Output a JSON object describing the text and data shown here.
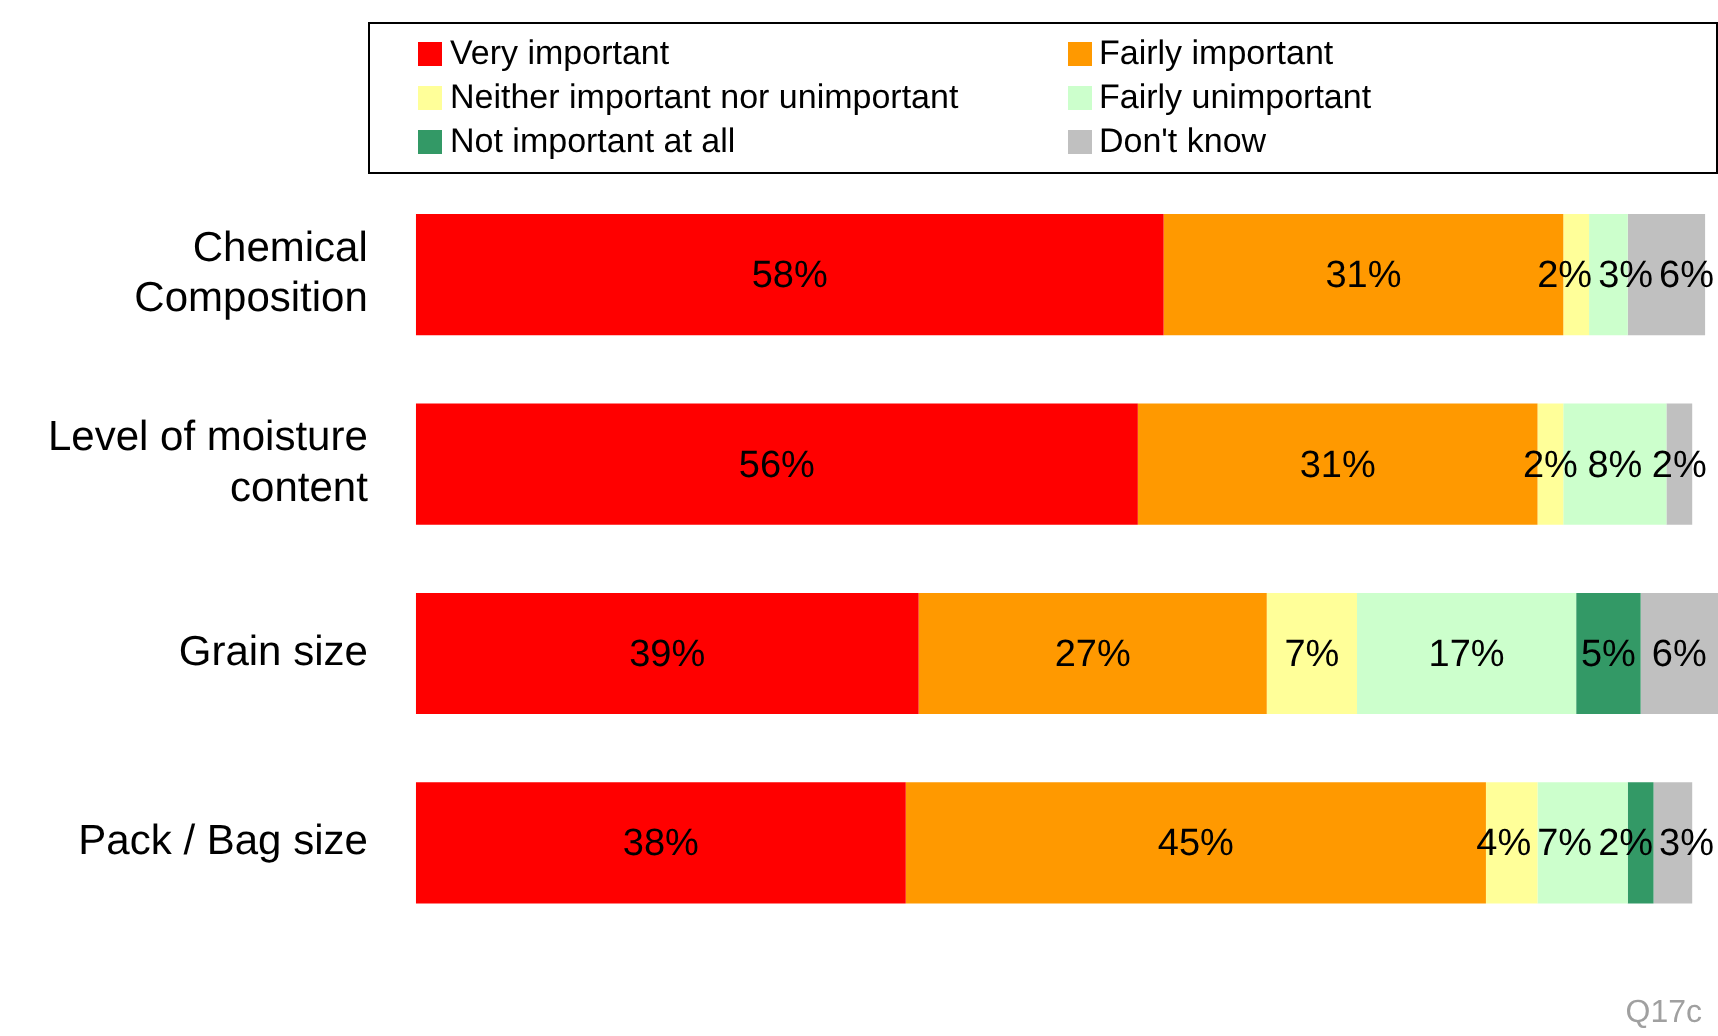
{
  "chart_data": {
    "type": "bar",
    "orientation": "horizontal",
    "stacked": true,
    "legend": "top",
    "tick_labels": "y",
    "categories": [
      "Chemical Composition",
      "Level of moisture content",
      "Grain size",
      "Pack / Bag size"
    ],
    "series": [
      {
        "name": "Very important",
        "color": "#ff0000",
        "values": [
          58,
          56,
          39,
          38
        ],
        "value_labels": [
          "58%",
          "56%",
          "39%",
          "38%"
        ]
      },
      {
        "name": "Fairly important",
        "color": "#ff9900",
        "values": [
          31,
          31,
          27,
          45
        ],
        "value_labels": [
          "31%",
          "31%",
          "27%",
          "45%"
        ]
      },
      {
        "name": "Neither important nor unimportant",
        "color": "#ffff99",
        "values": [
          2,
          2,
          7,
          4
        ],
        "value_labels": [
          "2%",
          "2%",
          "7%",
          "4%"
        ]
      },
      {
        "name": "Fairly unimportant",
        "color": "#ccffcc",
        "values": [
          3,
          8,
          17,
          7
        ],
        "value_labels": [
          "3%",
          "8%",
          "17%",
          "7%"
        ]
      },
      {
        "name": "Not important at all",
        "color": "#339966",
        "values": [
          null,
          null,
          5,
          2
        ],
        "value_labels": [
          null,
          null,
          "5%",
          "2%"
        ]
      },
      {
        "name": "Don't know",
        "color": "#c0c0c0",
        "values": [
          6,
          2,
          6,
          3
        ],
        "value_labels": [
          "6%",
          "2%",
          "6%",
          "3%"
        ]
      }
    ],
    "annotations": [
      "Q17c"
    ]
  }
}
